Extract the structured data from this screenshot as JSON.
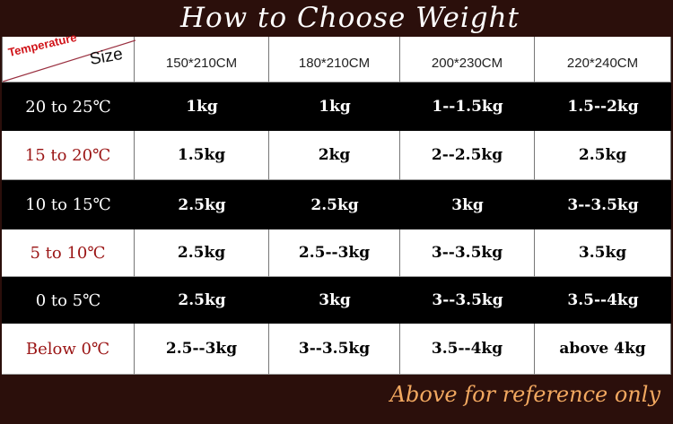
{
  "title": "How to Choose Weight",
  "corner": {
    "temperature_label": "Temperature",
    "size_label": "Size"
  },
  "sizes": [
    "150*210CM",
    "180*210CM",
    "200*230CM",
    "220*240CM"
  ],
  "rows": [
    {
      "temp": "20 to 25℃",
      "values": [
        "1kg",
        "1kg",
        "1--1.5kg",
        "1.5--2kg"
      ]
    },
    {
      "temp": "15 to 20℃",
      "values": [
        "1.5kg",
        "2kg",
        "2--2.5kg",
        "2.5kg"
      ]
    },
    {
      "temp": "10 to 15℃",
      "values": [
        "2.5kg",
        "2.5kg",
        "3kg",
        "3--3.5kg"
      ]
    },
    {
      "temp": "5 to 10℃",
      "values": [
        "2.5kg",
        "2.5--3kg",
        "3--3.5kg",
        "3.5kg"
      ]
    },
    {
      "temp": "0 to 5℃",
      "values": [
        "2.5kg",
        "3kg",
        "3--3.5kg",
        "3.5--4kg"
      ]
    },
    {
      "temp": "Below 0℃",
      "values": [
        "2.5--3kg",
        "3--3.5kg",
        "3.5--4kg",
        "above 4kg"
      ]
    }
  ],
  "footer": "Above for reference only",
  "colors": {
    "background": "#2b0f0b",
    "dark_row": "#000000",
    "temp_red": "#9a1414",
    "footer_text": "#f2a860"
  }
}
